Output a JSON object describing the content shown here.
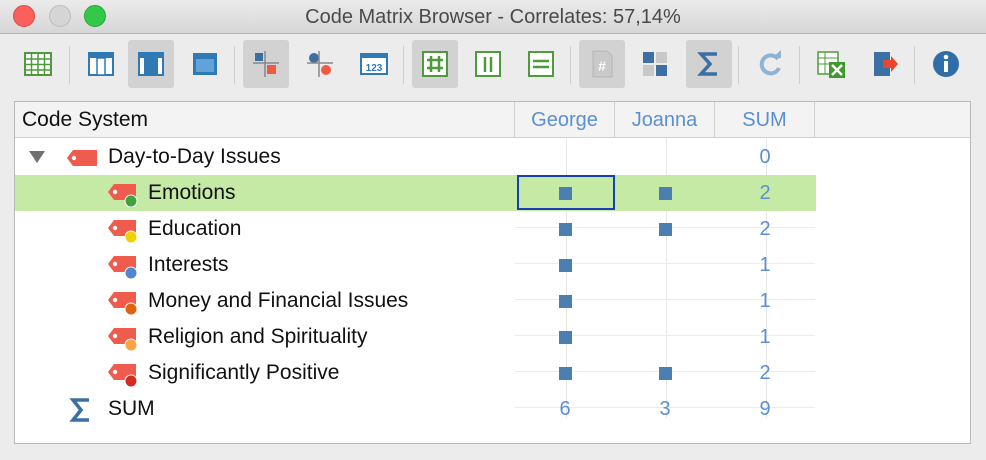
{
  "window": {
    "title": "Code Matrix Browser - Correlates: 57,14%"
  },
  "toolbar": {
    "buttons": [
      {
        "name": "table-icon",
        "active": false
      },
      {
        "name": "layout-column-icon",
        "active": false
      },
      {
        "name": "layout-center-icon",
        "active": true
      },
      {
        "name": "layout-full-icon",
        "active": false
      },
      {
        "name": "squares-icon",
        "active": true
      },
      {
        "name": "circles-icon",
        "active": false
      },
      {
        "name": "numbers-123-icon",
        "active": false
      },
      {
        "name": "grid-hash-icon",
        "active": true
      },
      {
        "name": "columns-icon",
        "active": false
      },
      {
        "name": "rows-icon",
        "active": false
      },
      {
        "name": "hash-doc-icon",
        "active": true
      },
      {
        "name": "binary-grid-icon",
        "active": false
      },
      {
        "name": "sigma-icon",
        "active": true
      },
      {
        "name": "refresh-icon",
        "active": false
      },
      {
        "name": "excel-export-icon",
        "active": false
      },
      {
        "name": "export-icon",
        "active": false
      },
      {
        "name": "info-icon",
        "active": false
      }
    ],
    "numbers_label": "123"
  },
  "table": {
    "headers": {
      "code_system": "Code System",
      "columns": [
        "George",
        "Joanna",
        "SUM"
      ]
    },
    "rows": [
      {
        "label": "Day-to-Day Issues",
        "level": 0,
        "icon": "code-tag-icon",
        "dot_color": "",
        "marks": [
          false,
          false
        ],
        "sum": "0",
        "expanded": true,
        "selected": false
      },
      {
        "label": "Emotions",
        "level": 1,
        "icon": "code-tag-icon",
        "dot_color": "#3fa33a",
        "marks": [
          true,
          true
        ],
        "sum": "2",
        "selected": true
      },
      {
        "label": "Education",
        "level": 1,
        "icon": "code-tag-icon",
        "dot_color": "#f2d100",
        "marks": [
          true,
          true
        ],
        "sum": "2",
        "selected": false
      },
      {
        "label": "Interests",
        "level": 1,
        "icon": "code-tag-icon",
        "dot_color": "#4f86cf",
        "marks": [
          true,
          false
        ],
        "sum": "1",
        "selected": false
      },
      {
        "label": "Money and Financial Issues",
        "level": 1,
        "icon": "code-tag-icon",
        "dot_color": "#e06410",
        "marks": [
          true,
          false
        ],
        "sum": "1",
        "selected": false
      },
      {
        "label": "Religion and Spirituality",
        "level": 1,
        "icon": "code-tag-icon",
        "dot_color": "#f7a346",
        "marks": [
          true,
          false
        ],
        "sum": "1",
        "selected": false
      },
      {
        "label": "Significantly Positive",
        "level": 1,
        "icon": "code-tag-icon",
        "dot_color": "#d42b22",
        "marks": [
          true,
          true
        ],
        "sum": "2",
        "selected": false
      }
    ],
    "sum_row": {
      "label": "SUM",
      "icon": "sigma-icon",
      "values": [
        "6",
        "3",
        "9"
      ]
    }
  },
  "colors": {
    "mark": "#4a7fb0",
    "number": "#5b8fd0",
    "selected_row": "#c4eaa6",
    "code_tag": "#ef5b4c"
  }
}
